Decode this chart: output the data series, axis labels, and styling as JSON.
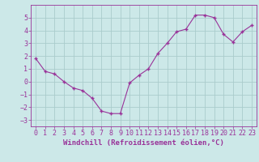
{
  "x": [
    0,
    1,
    2,
    3,
    4,
    5,
    6,
    7,
    8,
    9,
    10,
    11,
    12,
    13,
    14,
    15,
    16,
    17,
    18,
    19,
    20,
    21,
    22,
    23
  ],
  "y": [
    1.8,
    0.8,
    0.6,
    0.0,
    -0.5,
    -0.7,
    -1.3,
    -2.3,
    -2.5,
    -2.5,
    -0.1,
    0.5,
    1.0,
    2.2,
    3.0,
    3.9,
    4.1,
    5.2,
    5.2,
    5.0,
    3.7,
    3.1,
    3.9,
    4.4
  ],
  "line_color": "#993399",
  "marker": "+",
  "bg_color": "#cce8e8",
  "grid_color": "#aacccc",
  "xlabel": "Windchill (Refroidissement éolien,°C)",
  "xlim": [
    -0.5,
    23.5
  ],
  "ylim": [
    -3.5,
    6.0
  ],
  "yticks": [
    -3,
    -2,
    -1,
    0,
    1,
    2,
    3,
    4,
    5
  ],
  "xticks": [
    0,
    1,
    2,
    3,
    4,
    5,
    6,
    7,
    8,
    9,
    10,
    11,
    12,
    13,
    14,
    15,
    16,
    17,
    18,
    19,
    20,
    21,
    22,
    23
  ],
  "xlabel_fontsize": 6.5,
  "tick_fontsize": 6.0
}
